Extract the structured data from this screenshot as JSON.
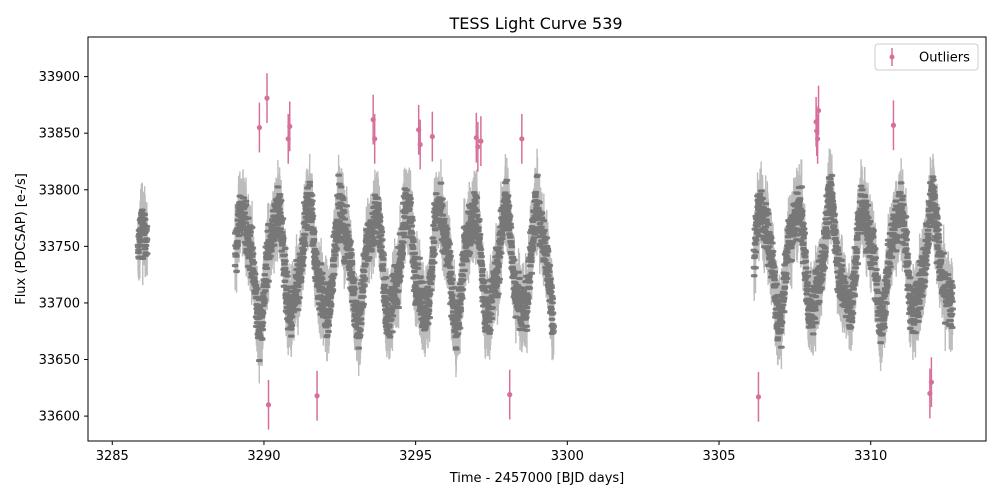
{
  "chart_data": {
    "type": "scatter",
    "title": "TESS Light Curve 539",
    "xlabel": "Time - 2457000 [BJD days]",
    "ylabel": "Flux (PDCSAP) [e-/s]",
    "xlim": [
      3284.2,
      3313.8
    ],
    "ylim": [
      33578,
      33935
    ],
    "x_ticks": [
      3285,
      3290,
      3295,
      3300,
      3305,
      3310
    ],
    "y_ticks": [
      33600,
      33650,
      33700,
      33750,
      33800,
      33850,
      33900
    ],
    "legend": {
      "position": "top-right",
      "entries": [
        "Outliers"
      ]
    },
    "grid": false,
    "colors": {
      "data": "#6b6b6b",
      "outliers": "#d6709a"
    },
    "segments": [
      {
        "start": 3285.85,
        "end": 3286.15,
        "mean": 33740,
        "amp": 25,
        "period": 0.9
      },
      {
        "start": 3289.05,
        "end": 3299.55,
        "mean": 33735,
        "amp": 45,
        "period": 1.08
      },
      {
        "start": 3306.15,
        "end": 3312.7,
        "mean": 33738,
        "amp": 45,
        "period": 1.12
      }
    ],
    "series": [
      {
        "name": "Outliers",
        "points": [
          {
            "x": 3289.85,
            "y": 33855,
            "err": 22
          },
          {
            "x": 3290.1,
            "y": 33881,
            "err": 22
          },
          {
            "x": 3290.15,
            "y": 33610,
            "err": 22
          },
          {
            "x": 3290.8,
            "y": 33845,
            "err": 22
          },
          {
            "x": 3290.85,
            "y": 33856,
            "err": 22
          },
          {
            "x": 3291.75,
            "y": 33618,
            "err": 22
          },
          {
            "x": 3293.6,
            "y": 33862,
            "err": 22
          },
          {
            "x": 3293.65,
            "y": 33845,
            "err": 22
          },
          {
            "x": 3295.1,
            "y": 33853,
            "err": 22
          },
          {
            "x": 3295.15,
            "y": 33840,
            "err": 22
          },
          {
            "x": 3295.55,
            "y": 33847,
            "err": 22
          },
          {
            "x": 3297.0,
            "y": 33846,
            "err": 22
          },
          {
            "x": 3297.05,
            "y": 33838,
            "err": 22
          },
          {
            "x": 3297.15,
            "y": 33843,
            "err": 22
          },
          {
            "x": 3298.1,
            "y": 33619,
            "err": 22
          },
          {
            "x": 3298.5,
            "y": 33845,
            "err": 22
          },
          {
            "x": 3306.3,
            "y": 33617,
            "err": 22
          },
          {
            "x": 3308.2,
            "y": 33860,
            "err": 22
          },
          {
            "x": 3308.22,
            "y": 33852,
            "err": 22
          },
          {
            "x": 3308.25,
            "y": 33845,
            "err": 22
          },
          {
            "x": 3308.28,
            "y": 33870,
            "err": 22
          },
          {
            "x": 3310.75,
            "y": 33857,
            "err": 22
          },
          {
            "x": 3311.95,
            "y": 33620,
            "err": 22
          },
          {
            "x": 3312.0,
            "y": 33630,
            "err": 22
          }
        ]
      }
    ]
  }
}
